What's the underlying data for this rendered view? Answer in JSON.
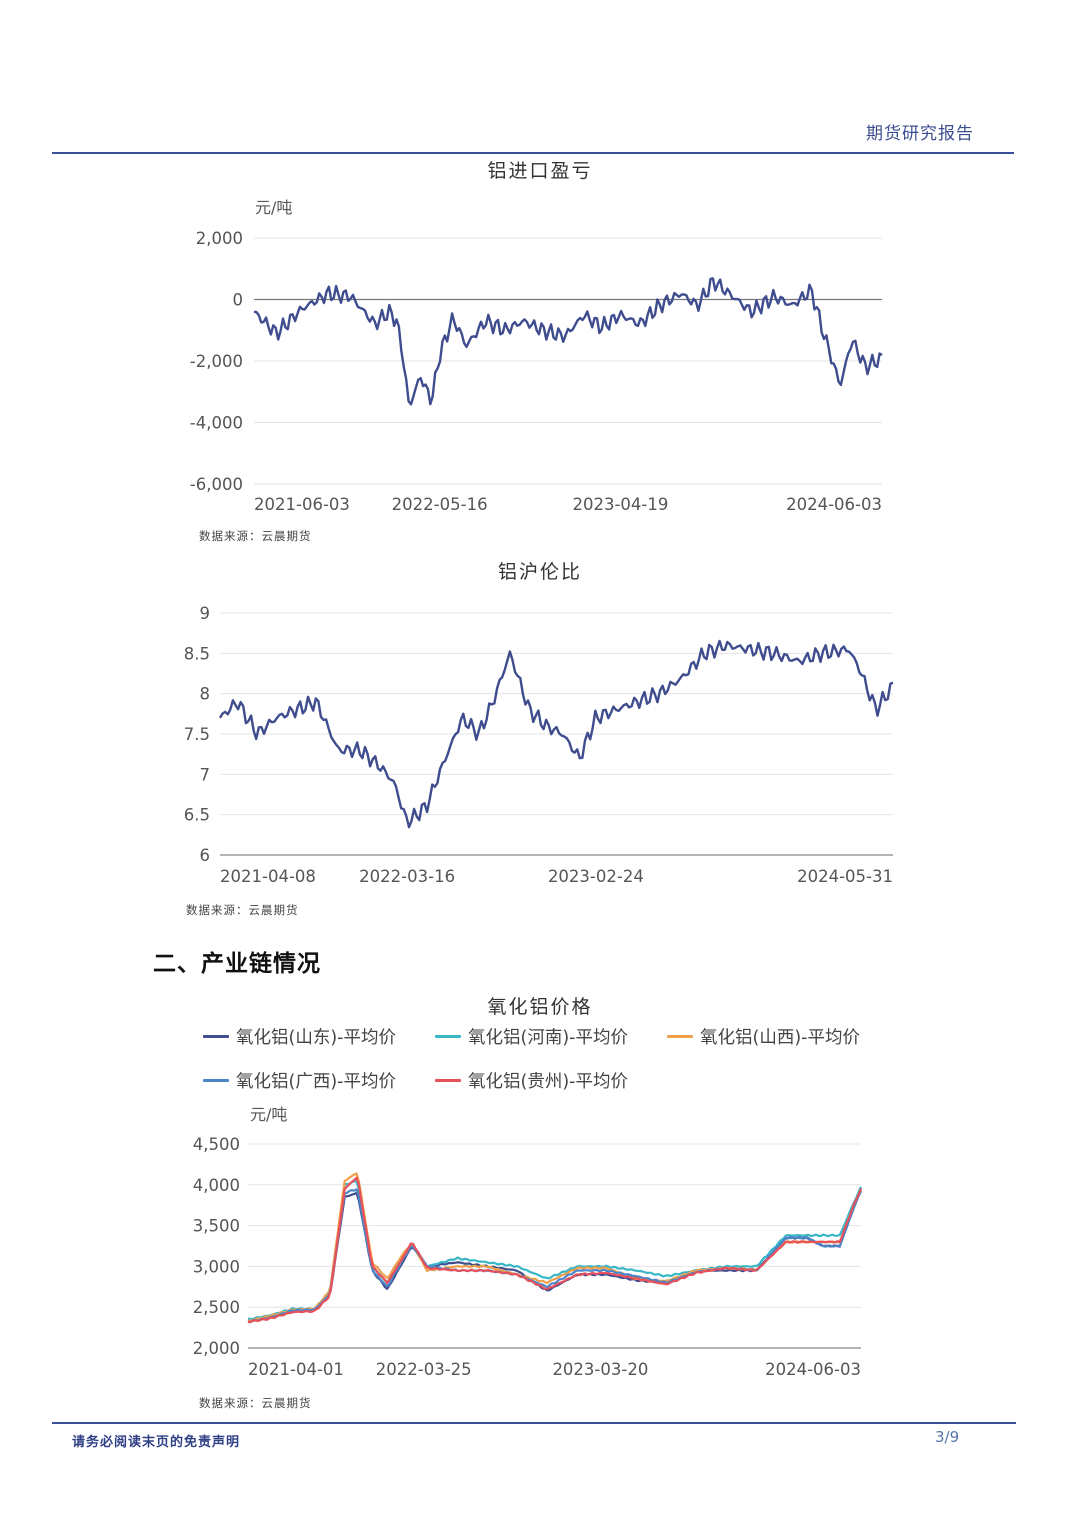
{
  "header": {
    "title": "期货研究报告"
  },
  "section": {
    "heading": "二、产业链情况"
  },
  "footer": {
    "disclaimer": "请务必阅读末页的免责声明",
    "page": "3/9"
  },
  "charts": [
    {
      "title": "铝进口盈亏",
      "unit": "元/吨",
      "source": "数据来源：云晨期货"
    },
    {
      "title": "铝沪伦比",
      "source": "数据来源：云晨期货"
    },
    {
      "title": "氧化铝价格",
      "unit": "元/吨",
      "source": "数据来源：云晨期货",
      "legend": [
        "氧化铝(山东)-平均价",
        "氧化铝(河南)-平均价",
        "氧化铝(山西)-平均价",
        "氧化铝(广西)-平均价",
        "氧化铝(贵州)-平均价"
      ]
    }
  ],
  "chart_data": [
    {
      "type": "line",
      "title": "铝进口盈亏",
      "ylabel": "元/吨",
      "ylim": [
        -6000,
        2000
      ],
      "yticks": [
        "2,000",
        "0",
        "-2,000",
        "-4,000",
        "-6,000"
      ],
      "xticks": [
        "2021-06-03",
        "2022-05-16",
        "2023-04-19",
        "2024-06-03"
      ],
      "grid": true,
      "series": [
        {
          "color": "#3f4d8f",
          "x": [
            "2021-06-03",
            "2021-07-15",
            "2021-09-01",
            "2021-10-20",
            "2021-12-01",
            "2022-01-15",
            "2022-02-10",
            "2022-02-25",
            "2022-03-08",
            "2022-03-20",
            "2022-04-10",
            "2022-05-01",
            "2022-05-16",
            "2022-06-10",
            "2022-07-05",
            "2022-08-10",
            "2022-09-15",
            "2022-10-20",
            "2022-11-25",
            "2023-01-05",
            "2023-02-10",
            "2023-03-15",
            "2023-04-19",
            "2023-05-25",
            "2023-07-01",
            "2023-08-10",
            "2023-09-10",
            "2023-10-10",
            "2023-11-15",
            "2023-12-20",
            "2024-02-01",
            "2024-03-05",
            "2024-04-10",
            "2024-05-01",
            "2024-06-03",
            "2024-06-25",
            "2024-07-20",
            "2024-08-20"
          ],
          "y": [
            -400,
            -1100,
            -300,
            200,
            100,
            -800,
            -400,
            -700,
            -1800,
            -3500,
            -2500,
            -3300,
            -1800,
            -600,
            -1500,
            -700,
            -1000,
            -700,
            -1000,
            -1200,
            -500,
            -900,
            -500,
            -800,
            -200,
            200,
            -200,
            600,
            100,
            -400,
            100,
            -200,
            300,
            -1000,
            -2800,
            -1300,
            -2200,
            -1900
          ]
        }
      ]
    },
    {
      "type": "line",
      "title": "铝沪伦比",
      "ylim": [
        6,
        9
      ],
      "yticks": [
        "9",
        "8.5",
        "8",
        "7.5",
        "7",
        "6.5",
        "6"
      ],
      "xticks": [
        "2021-04-08",
        "2022-03-16",
        "2023-02-24",
        "2024-05-31"
      ],
      "grid": true,
      "series": [
        {
          "color": "#3f4d8f",
          "x": [
            "2021-04-08",
            "2021-05-10",
            "2021-06-15",
            "2021-07-20",
            "2021-08-25",
            "2021-10-01",
            "2021-11-10",
            "2021-12-20",
            "2022-01-25",
            "2022-02-20",
            "2022-03-16",
            "2022-04-20",
            "2022-05-25",
            "2022-06-25",
            "2022-07-25",
            "2022-08-20",
            "2022-09-20",
            "2022-10-25",
            "2022-11-25",
            "2022-12-25",
            "2023-01-25",
            "2023-02-24",
            "2023-04-01",
            "2023-05-10",
            "2023-06-20",
            "2023-08-01",
            "2023-09-10",
            "2023-10-20",
            "2023-12-01",
            "2024-01-15",
            "2024-03-01",
            "2024-04-10",
            "2024-05-31",
            "2024-06-20",
            "2024-07-20",
            "2024-08-20"
          ],
          "y": [
            7.7,
            7.9,
            7.5,
            7.7,
            7.8,
            7.9,
            7.3,
            7.3,
            7.1,
            6.9,
            6.4,
            6.6,
            7.2,
            7.7,
            7.5,
            7.9,
            8.5,
            7.8,
            7.6,
            7.5,
            7.2,
            7.7,
            7.8,
            7.9,
            8.0,
            8.2,
            8.5,
            8.6,
            8.55,
            8.5,
            8.4,
            8.5,
            8.55,
            8.3,
            7.8,
            8.1
          ]
        }
      ]
    },
    {
      "type": "line",
      "title": "氧化铝价格",
      "ylabel": "元/吨",
      "ylim": [
        2000,
        4500
      ],
      "yticks": [
        "4,500",
        "4,000",
        "3,500",
        "3,000",
        "2,500",
        "2,000"
      ],
      "xticks": [
        "2021-04-01",
        "2022-03-25",
        "2023-03-20",
        "2024-06-03"
      ],
      "grid": true,
      "legend_position": "top",
      "x": [
        "2021-04-01",
        "2021-05-15",
        "2021-07-01",
        "2021-08-15",
        "2021-09-15",
        "2021-10-15",
        "2021-11-10",
        "2021-12-10",
        "2022-01-10",
        "2022-02-10",
        "2022-03-01",
        "2022-04-01",
        "2022-06-01",
        "2022-08-01",
        "2022-10-01",
        "2022-12-01",
        "2023-02-01",
        "2023-04-01",
        "2023-06-01",
        "2023-08-01",
        "2023-10-01",
        "2023-12-01",
        "2024-02-01",
        "2024-04-01",
        "2024-05-15",
        "2024-06-15",
        "2024-07-20",
        "2024-08-15",
        "2024-09-01"
      ],
      "series": [
        {
          "name": "氧化铝(山东)-平均价",
          "color": "#3f4d8f",
          "values": [
            2330,
            2380,
            2450,
            2470,
            2650,
            3850,
            3900,
            2950,
            2720,
            3050,
            3250,
            3000,
            3050,
            3000,
            2950,
            2700,
            2900,
            2900,
            2830,
            2800,
            2950,
            2950,
            2950,
            3350,
            3350,
            3250,
            3250,
            3700,
            3950
          ]
        },
        {
          "name": "氧化铝(河南)-平均价",
          "color": "#39b7c7",
          "values": [
            2350,
            2400,
            2480,
            2480,
            2700,
            4000,
            4050,
            3000,
            2800,
            3100,
            3280,
            3000,
            3100,
            3050,
            3000,
            2850,
            3000,
            3000,
            2950,
            2880,
            2950,
            3000,
            3000,
            3380,
            3380,
            3380,
            3380,
            3750,
            3970
          ]
        },
        {
          "name": "氧化铝(山西)-平均价",
          "color": "#f0a04b",
          "values": [
            2330,
            2390,
            2470,
            2480,
            2700,
            4050,
            4150,
            3050,
            2850,
            3150,
            3280,
            2950,
            3000,
            3000,
            2900,
            2800,
            2980,
            2980,
            2850,
            2820,
            2950,
            2980,
            2960,
            3300,
            3300,
            3300,
            3300,
            3700,
            3940
          ]
        },
        {
          "name": "氧化铝(广西)-平均价",
          "color": "#4a86c8",
          "values": [
            2320,
            2370,
            2460,
            2470,
            2660,
            3900,
            3950,
            2950,
            2750,
            3080,
            3260,
            3000,
            2950,
            2950,
            2900,
            2750,
            2950,
            2950,
            2880,
            2800,
            2930,
            2980,
            2950,
            3350,
            3350,
            3250,
            3250,
            3680,
            3930
          ]
        },
        {
          "name": "氧化铝(贵州)-平均价",
          "color": "#e8505b",
          "values": [
            2320,
            2360,
            2440,
            2450,
            2640,
            3950,
            4100,
            3000,
            2800,
            3100,
            3300,
            2980,
            2950,
            2950,
            2900,
            2720,
            2900,
            2920,
            2850,
            2780,
            2920,
            2980,
            2950,
            3300,
            3300,
            3300,
            3300,
            3720,
            3950
          ]
        }
      ]
    }
  ]
}
